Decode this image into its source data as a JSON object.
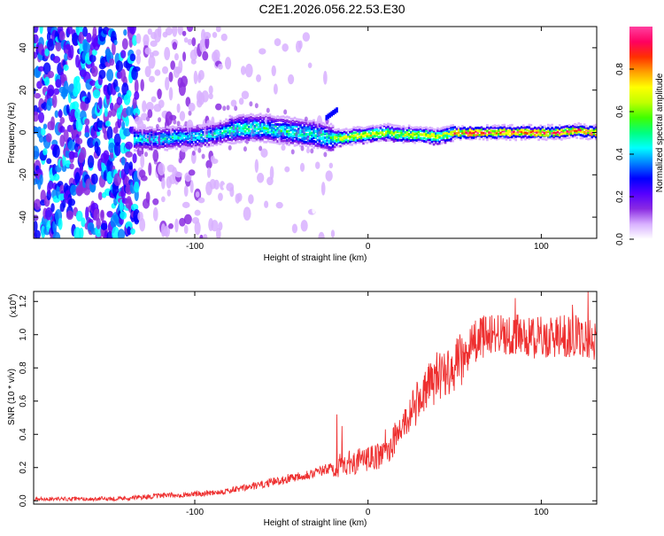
{
  "title": "C2E1.2026.056.22.53.E30",
  "chart_data": [
    {
      "type": "heatmap",
      "name": "spectrogram",
      "xlabel": "Height of straight line (km)",
      "ylabel": "Frequency (Hz)",
      "xlim": [
        -193,
        132
      ],
      "ylim": [
        -50,
        50
      ],
      "xticks": [
        -100,
        0,
        100
      ],
      "xtick_labels": [
        "-100",
        "0",
        "100"
      ],
      "yticks": [
        -40,
        -20,
        0,
        20,
        40
      ],
      "ytick_labels": [
        "-40",
        "-20",
        "0",
        "20",
        "40"
      ],
      "colorbar": {
        "label": "Normalized spectral amplitude",
        "range": [
          0,
          1
        ],
        "ticks": [
          0.0,
          0.2,
          0.4,
          0.6,
          0.8
        ],
        "tick_labels": [
          "0.0",
          "0.2",
          "0.4",
          "0.6",
          "0.8"
        ],
        "colors": [
          "#ffffff",
          "#d8b0ff",
          "#8a2be2",
          "#5500ff",
          "#0000ff",
          "#0080ff",
          "#00ffff",
          "#00ff80",
          "#40ff00",
          "#c0ff00",
          "#ffff00",
          "#ffa000",
          "#ff3000",
          "#ff0060",
          "#ff40a0"
        ]
      },
      "band_center": [
        [
          -133,
          -3
        ],
        [
          -120,
          -3
        ],
        [
          -110,
          -2
        ],
        [
          -100,
          -2
        ],
        [
          -90,
          -1
        ],
        [
          -80,
          1
        ],
        [
          -70,
          2
        ],
        [
          -60,
          2
        ],
        [
          -50,
          1
        ],
        [
          -40,
          0
        ],
        [
          -30,
          -1
        ],
        [
          -20,
          -3
        ],
        [
          -10,
          -2
        ],
        [
          0,
          -1
        ],
        [
          10,
          0
        ],
        [
          20,
          -1
        ],
        [
          30,
          -1
        ],
        [
          40,
          -2
        ],
        [
          50,
          0
        ],
        [
          60,
          0
        ],
        [
          70,
          0
        ],
        [
          80,
          0
        ],
        [
          90,
          0
        ],
        [
          100,
          0
        ],
        [
          110,
          0
        ],
        [
          120,
          1
        ],
        [
          130,
          0
        ]
      ]
    },
    {
      "type": "line",
      "name": "snr",
      "xlabel": "Height of straight line (km)",
      "ylabel": "SNR (10 * v/v)",
      "scale_label": "(x10",
      "scale_exp": "4",
      "scale_close": ")",
      "xlim": [
        -193,
        132
      ],
      "ylim": [
        -0.02,
        1.26
      ],
      "xticks": [
        -100,
        0,
        100
      ],
      "xtick_labels": [
        "-100",
        "0",
        "100"
      ],
      "yticks": [
        0.0,
        0.2,
        0.4,
        0.6,
        0.8,
        1.0,
        1.2
      ],
      "ytick_labels": [
        "0.0",
        "0.2",
        "0.4",
        "0.6",
        "0.8",
        "1.0",
        "1.2"
      ],
      "color": "#ee3030",
      "trend": [
        [
          -193,
          0.01
        ],
        [
          -160,
          0.01
        ],
        [
          -140,
          0.015
        ],
        [
          -120,
          0.03
        ],
        [
          -100,
          0.04
        ],
        [
          -80,
          0.06
        ],
        [
          -60,
          0.1
        ],
        [
          -40,
          0.15
        ],
        [
          -30,
          0.17
        ],
        [
          -20,
          0.2
        ],
        [
          -10,
          0.23
        ],
        [
          0,
          0.25
        ],
        [
          10,
          0.28
        ],
        [
          20,
          0.45
        ],
        [
          30,
          0.62
        ],
        [
          40,
          0.75
        ],
        [
          50,
          0.82
        ],
        [
          55,
          0.85
        ],
        [
          60,
          0.95
        ],
        [
          70,
          1.01
        ],
        [
          80,
          1.0
        ],
        [
          90,
          0.99
        ],
        [
          100,
          0.98
        ],
        [
          110,
          0.99
        ],
        [
          120,
          0.99
        ],
        [
          132,
          0.97
        ]
      ],
      "spikes": [
        [
          -18,
          0.52
        ],
        [
          -15,
          0.45
        ],
        [
          10,
          0.43
        ],
        [
          45,
          0.82
        ],
        [
          85,
          1.22
        ],
        [
          118,
          1.18
        ],
        [
          127,
          1.26
        ]
      ]
    }
  ]
}
